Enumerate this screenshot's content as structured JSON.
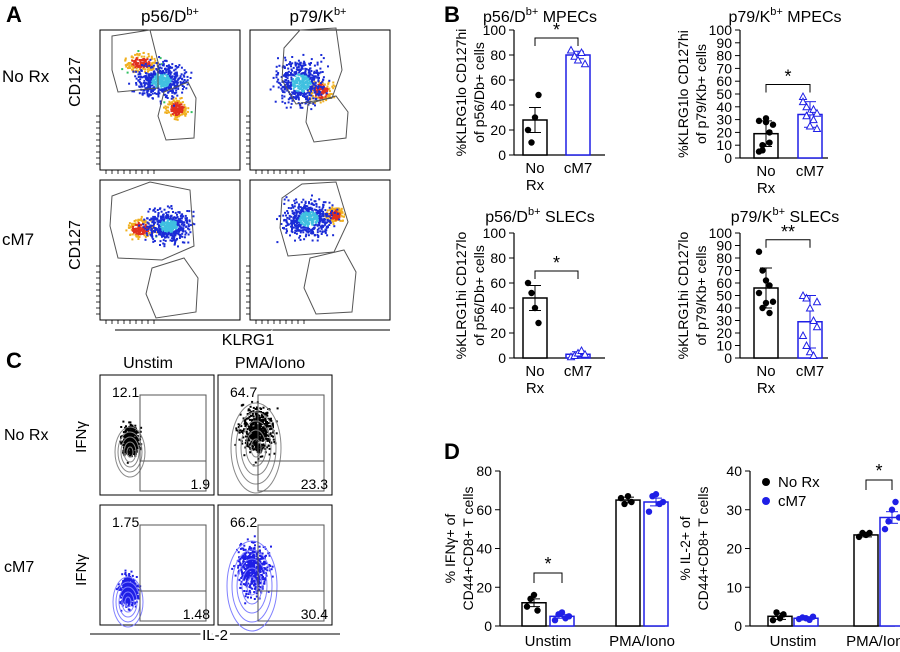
{
  "panel_letters": {
    "A": "A",
    "B": "B",
    "C": "C",
    "D": "D"
  },
  "panel_a": {
    "col_labels": [
      "p56/D",
      "p79/K"
    ],
    "col_sup": [
      "b+",
      "b+"
    ],
    "row_labels": [
      "No Rx",
      "cM7"
    ],
    "ylabel": "CD127",
    "xlabel": "KLRG1"
  },
  "panel_c": {
    "col_labels": [
      "Unstim",
      "PMA/Iono"
    ],
    "row_labels": [
      "No Rx",
      "cM7"
    ],
    "ylabel": "IFNγ",
    "xlabel": "IL-2",
    "quadrant_values": [
      {
        "top_left": "12.1",
        "bottom_right": "1.9"
      },
      {
        "top_left": "64.7",
        "bottom_right": "23.3"
      },
      {
        "top_left": "1.75",
        "bottom_right": "1.48"
      },
      {
        "top_left": "66.2",
        "bottom_right": "30.4"
      }
    ]
  },
  "colors": {
    "no_rx": "#000000",
    "cm7": "#1f1fe6"
  },
  "chart_data": [
    {
      "id": "b1",
      "type": "bar",
      "title_main": "p56/D",
      "title_sup": "b+",
      "title_rest": " MPECs",
      "ylabel_lines": [
        "%KLRG1lo CD127hi",
        "of p56/Db+ cells"
      ],
      "categories": [
        "No Rx",
        "cM7"
      ],
      "values": [
        28,
        80
      ],
      "errors": [
        10,
        3
      ],
      "points": [
        [
          20,
          10,
          30,
          48
        ],
        [
          84,
          79,
          76,
          82,
          73
        ]
      ],
      "ylim": [
        0,
        100
      ],
      "yticks": [
        0,
        20,
        40,
        60,
        80,
        100
      ],
      "significance": "*"
    },
    {
      "id": "b2",
      "type": "bar",
      "title_main": "p79/K",
      "title_sup": "b+",
      "title_rest": " MPECs",
      "ylabel_lines": [
        "%KLRG1lo CD127hi",
        "of p79/Kb+ cells"
      ],
      "categories": [
        "No Rx",
        "cM7"
      ],
      "values": [
        19,
        34
      ],
      "errors": [
        10,
        10
      ],
      "points": [
        [
          5,
          10,
          28,
          12,
          26,
          29,
          6,
          31,
          20
        ],
        [
          48,
          40,
          36,
          30,
          23,
          44,
          33,
          25,
          38,
          35
        ]
      ],
      "ylim": [
        0,
        100
      ],
      "yticks": [
        0,
        10,
        20,
        30,
        40,
        50,
        60,
        70,
        80,
        90,
        100
      ],
      "significance": "*"
    },
    {
      "id": "b3",
      "type": "bar",
      "title_main": "p56/D",
      "title_sup": "b+",
      "title_rest": " SLECs",
      "ylabel_lines": [
        "%KLRG1hi CD127lo",
        "of p56/Db+ cells"
      ],
      "categories": [
        "No Rx",
        "cM7"
      ],
      "values": [
        48,
        3
      ],
      "errors": [
        10,
        2
      ],
      "points": [
        [
          60,
          52,
          40,
          28
        ],
        [
          1,
          2,
          4,
          6,
          3
        ]
      ],
      "ylim": [
        0,
        100
      ],
      "yticks": [
        0,
        20,
        40,
        60,
        80,
        100
      ],
      "significance": "*"
    },
    {
      "id": "b4",
      "type": "bar",
      "title_main": "p79/K",
      "title_sup": "b+",
      "title_rest": " SLECs",
      "ylabel_lines": [
        "%KLRG1hi CD127lo",
        "of p79/Kb+ cells"
      ],
      "categories": [
        "No Rx",
        "cM7"
      ],
      "values": [
        56,
        29
      ],
      "errors": [
        16,
        21
      ],
      "points": [
        [
          85,
          70,
          62,
          58,
          45,
          52,
          40,
          44,
          36
        ],
        [
          50,
          48,
          40,
          30,
          25,
          18,
          10,
          5,
          2,
          45
        ]
      ],
      "ylim": [
        0,
        100
      ],
      "yticks": [
        0,
        10,
        20,
        30,
        40,
        50,
        60,
        70,
        80,
        90,
        100
      ],
      "significance": "**"
    },
    {
      "id": "d1",
      "type": "bar",
      "ylabel_lines": [
        "% IFNγ+ of",
        "CD44+CD8+ T cells"
      ],
      "categories": [
        "Unstim",
        "PMA/Iono"
      ],
      "series": [
        {
          "values": [
            12,
            65
          ],
          "errors": [
            2,
            1.5
          ],
          "points": [
            [
              10,
              14,
              16,
              8
            ],
            [
              66,
              63,
              67,
              64
            ]
          ]
        },
        {
          "values": [
            5,
            64
          ],
          "errors": [
            1,
            2
          ],
          "points": [
            [
              3,
              6,
              7,
              4,
              5
            ],
            [
              59,
              67,
              68,
              63,
              64
            ]
          ]
        }
      ],
      "ylim": [
        0,
        80
      ],
      "yticks": [
        0,
        20,
        40,
        60,
        80
      ],
      "significance": [
        "*",
        null
      ]
    },
    {
      "id": "d2",
      "type": "bar",
      "ylabel_lines": [
        "% IL-2+ of",
        "CD44+CD8+ T cells"
      ],
      "categories": [
        "Unstim",
        "PMA/Iono"
      ],
      "legend": [
        "No Rx",
        "cM7"
      ],
      "series": [
        {
          "values": [
            2.5,
            23.5
          ],
          "errors": [
            0.8,
            0.5
          ],
          "points": [
            [
              1.5,
              3.5,
              2,
              3
            ],
            [
              23,
              24,
              23.5,
              24
            ]
          ]
        },
        {
          "values": [
            2,
            28
          ],
          "errors": [
            0.4,
            1.5
          ],
          "points": [
            [
              1.8,
              2.2,
              2,
              1.6,
              2.4
            ],
            [
              25,
              27,
              30,
              32,
              28
            ]
          ]
        }
      ],
      "ylim": [
        0,
        40
      ],
      "yticks": [
        0,
        10,
        20,
        30,
        40
      ],
      "significance": [
        null,
        "*"
      ]
    }
  ]
}
